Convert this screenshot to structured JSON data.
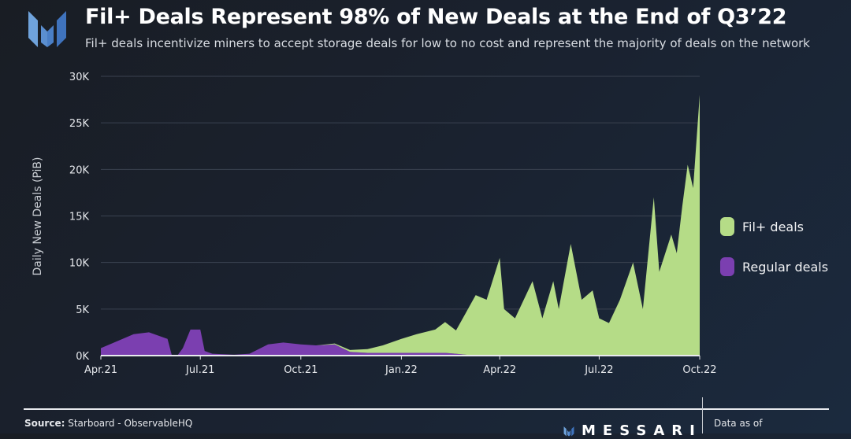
{
  "header": {
    "title": "Fil+ Deals Represent 98% of New Deals at the End of Q3’22",
    "subtitle": "Fil+ deals incentivize miners to accept storage deals for low to no cost and represent the majority of deals on the network",
    "logo_icon": "messari-logo-icon"
  },
  "footer": {
    "source_label": "Source:",
    "source_text": "Starboard - ObservableHQ",
    "brand": "MESSARI",
    "data_as_of": "Data as of"
  },
  "chart_data": {
    "type": "area",
    "stacked": true,
    "title": "Fil+ Deals Represent 98% of New Deals at the End of Q3’22",
    "ylabel": "Daily New Deals (PiB)",
    "xlabel": "",
    "ylim": [
      0,
      30000
    ],
    "xlim": [
      "2021-04-01",
      "2022-10-01"
    ],
    "yticks": [
      0,
      5000,
      10000,
      15000,
      20000,
      25000,
      30000
    ],
    "ytick_labels": [
      "0K",
      "5K",
      "10K",
      "15K",
      "20K",
      "25K",
      "30K"
    ],
    "xticks": [
      "2021-04-01",
      "2021-07-01",
      "2021-10-01",
      "2022-01-01",
      "2022-04-01",
      "2022-07-01",
      "2022-10-01"
    ],
    "xtick_labels": [
      "Apr.21",
      "Jul.21",
      "Oct.21",
      "Jan.22",
      "Apr.22",
      "Jul.22",
      "Oct.22"
    ],
    "grid": "horizontal",
    "legend": "right",
    "x": [
      "2021-04-01",
      "2021-04-15",
      "2021-05-01",
      "2021-05-15",
      "2021-06-01",
      "2021-06-05",
      "2021-06-10",
      "2021-06-15",
      "2021-06-22",
      "2021-07-01",
      "2021-07-05",
      "2021-07-12",
      "2021-08-01",
      "2021-08-15",
      "2021-09-01",
      "2021-09-15",
      "2021-10-01",
      "2021-10-15",
      "2021-11-01",
      "2021-11-15",
      "2021-12-01",
      "2021-12-15",
      "2022-01-01",
      "2022-01-15",
      "2022-02-01",
      "2022-02-10",
      "2022-02-20",
      "2022-03-01",
      "2022-03-10",
      "2022-03-20",
      "2022-04-01",
      "2022-04-05",
      "2022-04-15",
      "2022-05-01",
      "2022-05-10",
      "2022-05-20",
      "2022-05-25",
      "2022-06-05",
      "2022-06-15",
      "2022-06-25",
      "2022-07-01",
      "2022-07-10",
      "2022-07-20",
      "2022-08-01",
      "2022-08-10",
      "2022-08-20",
      "2022-08-25",
      "2022-09-05",
      "2022-09-10",
      "2022-09-15",
      "2022-09-20",
      "2022-09-25",
      "2022-10-01"
    ],
    "series": [
      {
        "name": "Regular deals",
        "color": "#7b3fb0",
        "values": [
          800,
          1500,
          2300,
          2500,
          1800,
          0,
          0,
          800,
          2800,
          2800,
          500,
          200,
          100,
          200,
          1200,
          1400,
          1200,
          1100,
          1200,
          400,
          300,
          300,
          300,
          300,
          300,
          300,
          200,
          100,
          0,
          0,
          0,
          0,
          0,
          0,
          0,
          0,
          0,
          0,
          0,
          0,
          0,
          0,
          0,
          0,
          0,
          0,
          0,
          0,
          0,
          0,
          0,
          0,
          0
        ]
      },
      {
        "name": "Fil+ deals",
        "color": "#b5dc87",
        "values": [
          0,
          0,
          0,
          0,
          0,
          0,
          0,
          0,
          0,
          0,
          0,
          0,
          0,
          0,
          0,
          0,
          0,
          0,
          100,
          200,
          400,
          800,
          1500,
          2000,
          2500,
          3300,
          2500,
          4500,
          6500,
          6000,
          10500,
          5000,
          4000,
          8000,
          4000,
          8000,
          5000,
          12000,
          6000,
          7000,
          4000,
          3500,
          6000,
          10000,
          5000,
          17000,
          9000,
          13000,
          11000,
          16000,
          20500,
          18000,
          28000
        ]
      }
    ]
  }
}
